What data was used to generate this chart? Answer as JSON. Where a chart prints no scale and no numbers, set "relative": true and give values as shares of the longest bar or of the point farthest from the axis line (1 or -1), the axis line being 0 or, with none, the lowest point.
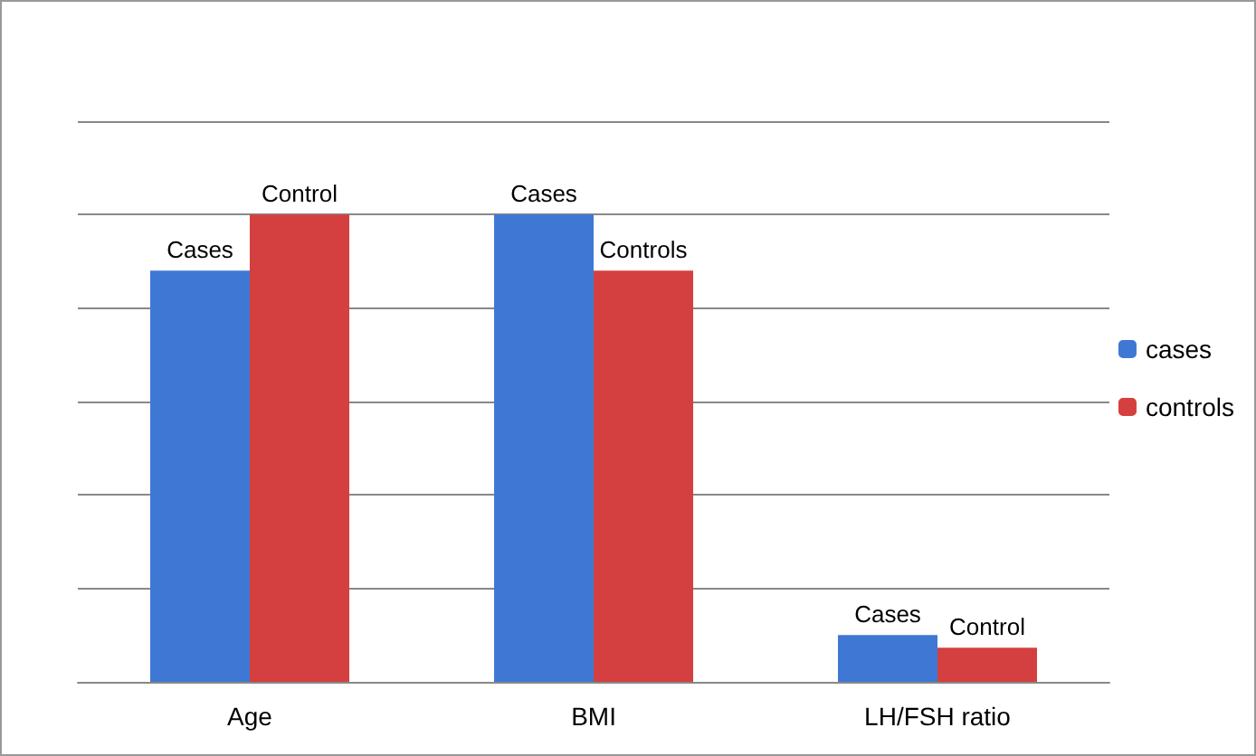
{
  "chart_data": {
    "type": "bar",
    "relative": true,
    "categories": [
      "Age",
      "BMI",
      "LH/FSH ratio"
    ],
    "series": [
      {
        "name": "cases",
        "color": "#3f78d4",
        "values": [
          0.88,
          1,
          0.1
        ]
      },
      {
        "name": "controls",
        "color": "#d4403f",
        "values": [
          1,
          0.88,
          0.073
        ]
      }
    ],
    "annotations": [
      {
        "text": "Cases",
        "x": "Age",
        "y": 0.88
      },
      {
        "text": "Control",
        "x": "Age",
        "y": 1
      },
      {
        "text": "Cases",
        "x": "BMI",
        "y": 1
      },
      {
        "text": "Controls",
        "x": "BMI",
        "y": 0.88
      },
      {
        "text": "Cases",
        "x": "LH/FSH ratio",
        "y": 0.1
      },
      {
        "text": "Control",
        "x": "LH/FSH ratio",
        "y": 0.073
      }
    ],
    "grid": true,
    "legend": "right"
  }
}
